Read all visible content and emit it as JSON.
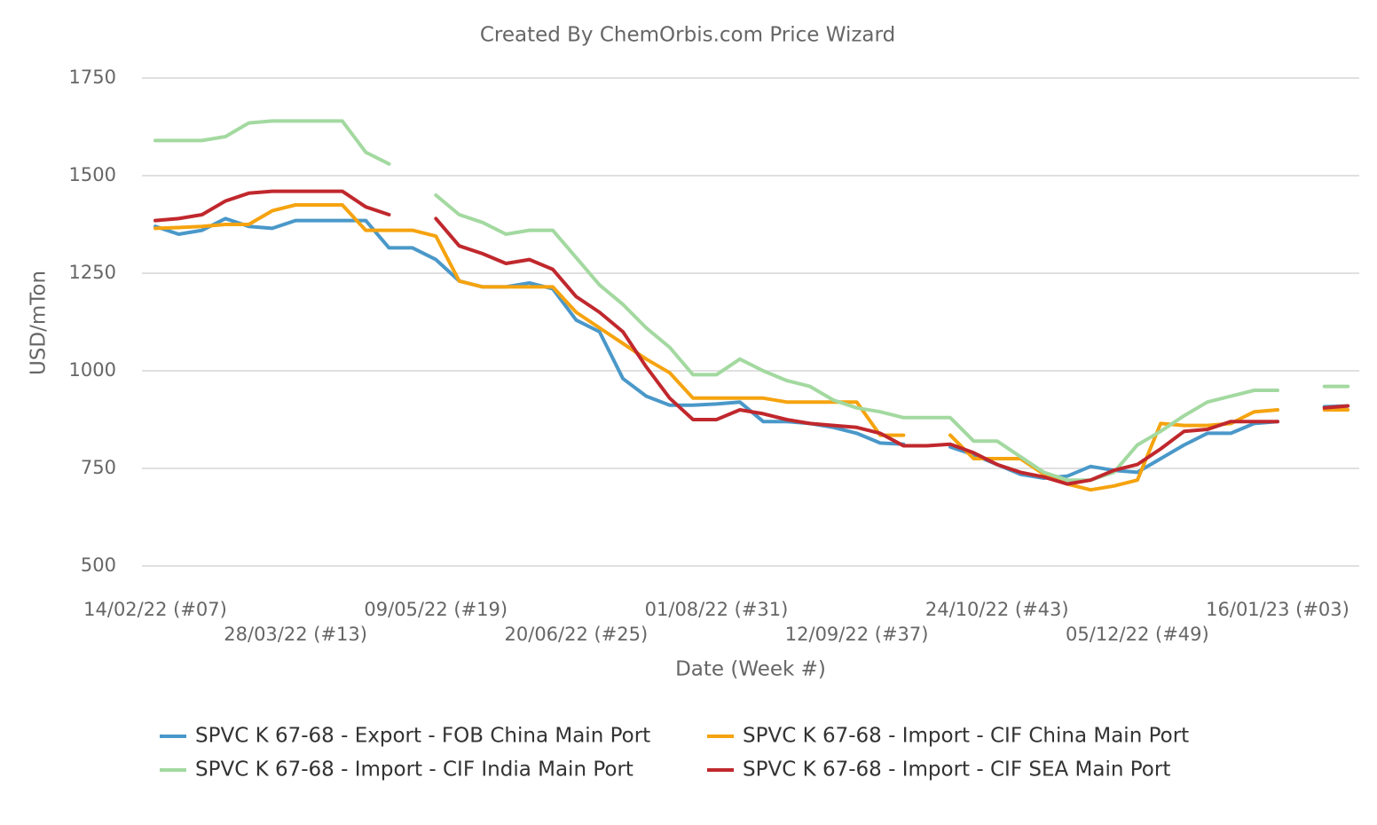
{
  "chart_data": {
    "type": "line",
    "title": "Created By ChemOrbis.com Price Wizard",
    "y_label": "USD/mTon",
    "x_label": "Date (Week #)",
    "categories": [
      "14/02/22 (#07)",
      null,
      null,
      null,
      null,
      null,
      "28/03/22 (#13)",
      null,
      null,
      null,
      null,
      null,
      "09/05/22 (#19)",
      null,
      null,
      null,
      null,
      null,
      "20/06/22 (#25)",
      null,
      null,
      null,
      null,
      null,
      "01/08/22 (#31)",
      null,
      null,
      null,
      null,
      null,
      "12/09/22 (#37)",
      null,
      null,
      null,
      null,
      null,
      "24/10/22 (#43)",
      null,
      null,
      null,
      null,
      null,
      "05/12/22 (#49)",
      null,
      null,
      null,
      null,
      null,
      "16/01/23 (#03)",
      null,
      null,
      null
    ],
    "series": [
      {
        "name": "SPVC K 67-68 - Export - FOB China Main Port",
        "color": "#4a98c9",
        "values": [
          1370,
          1350,
          1360,
          1390,
          1370,
          1365,
          1385,
          1385,
          1385,
          1385,
          1315,
          1315,
          1285,
          1230,
          1215,
          1215,
          1225,
          1210,
          1130,
          1100,
          980,
          935,
          912,
          912,
          915,
          920,
          870,
          870,
          865,
          855,
          840,
          815,
          812,
          null,
          805,
          785,
          760,
          735,
          725,
          730,
          755,
          745,
          740,
          775,
          810,
          840,
          840,
          865,
          870,
          null,
          908,
          910
        ]
      },
      {
        "name": "SPVC K 67-68 - Import - CIF China Main Port",
        "color": "#f5a30f",
        "values": [
          1365,
          1367,
          1370,
          1375,
          1375,
          1410,
          1425,
          1425,
          1425,
          1360,
          1360,
          1360,
          1345,
          1230,
          1215,
          1215,
          1215,
          1215,
          1150,
          1110,
          1070,
          1030,
          995,
          930,
          930,
          930,
          930,
          920,
          920,
          920,
          920,
          835,
          835,
          null,
          835,
          775,
          775,
          775,
          735,
          710,
          695,
          705,
          720,
          865,
          860,
          860,
          865,
          895,
          900,
          null,
          900,
          900
        ]
      },
      {
        "name": "SPVC K 67-68 - Import - CIF India Main Port",
        "color": "#a3d9a0",
        "values": [
          1590,
          1590,
          1590,
          1600,
          1635,
          1640,
          1640,
          1640,
          1640,
          1560,
          1530,
          null,
          1450,
          1400,
          1380,
          1350,
          1360,
          1360,
          1290,
          1220,
          1170,
          1110,
          1060,
          990,
          990,
          1030,
          1000,
          975,
          960,
          925,
          905,
          895,
          880,
          880,
          880,
          820,
          820,
          780,
          740,
          720,
          720,
          740,
          810,
          845,
          885,
          920,
          935,
          950,
          950,
          null,
          960,
          960
        ]
      },
      {
        "name": "SPVC K 67-68 - Import - CIF SEA Main Port",
        "color": "#c0282d",
        "values": [
          1385,
          1390,
          1400,
          1435,
          1455,
          1460,
          1460,
          1460,
          1460,
          1420,
          1400,
          null,
          1390,
          1320,
          1300,
          1275,
          1285,
          1260,
          1190,
          1150,
          1100,
          1010,
          930,
          875,
          875,
          900,
          890,
          875,
          865,
          860,
          855,
          840,
          808,
          808,
          812,
          790,
          760,
          740,
          728,
          710,
          720,
          745,
          760,
          800,
          845,
          850,
          870,
          870,
          870,
          null,
          905,
          910
        ]
      }
    ],
    "ylim": [
      500,
      1750
    ],
    "yticks": [
      500,
      750,
      1000,
      1250,
      1500,
      1750
    ],
    "grid": true
  }
}
